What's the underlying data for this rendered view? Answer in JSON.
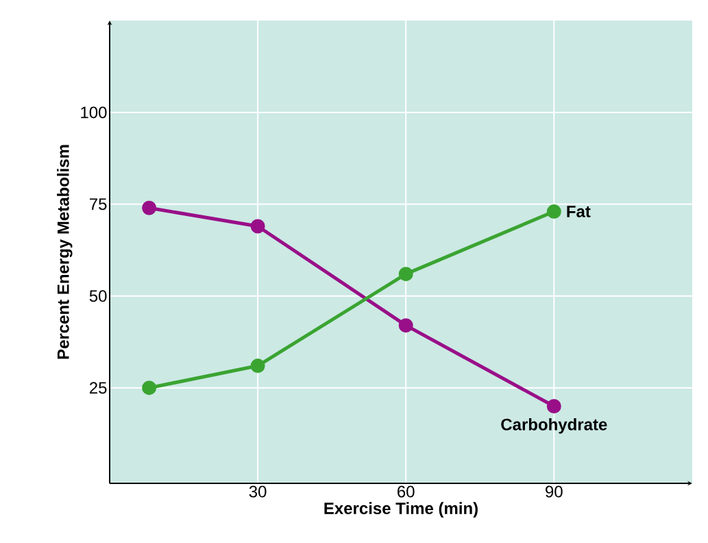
{
  "chart_data": {
    "type": "line",
    "xlabel": "Exercise Time (min)",
    "ylabel": "Percent Energy Metabolism",
    "x": [
      8,
      30,
      60,
      90
    ],
    "series": [
      {
        "name": "Carbohydrate",
        "color": "#990f88",
        "values": [
          74,
          69,
          42,
          20
        ]
      },
      {
        "name": "Fat",
        "color": "#3aa431",
        "values": [
          25,
          31,
          56,
          73
        ]
      }
    ],
    "xlim": [
      0,
      118
    ],
    "ylim": [
      -1,
      125
    ],
    "xticks": [
      30,
      60,
      90
    ],
    "yticks": [
      25,
      50,
      75,
      100
    ],
    "grid": true,
    "marker": "circle",
    "line_style": "solid"
  }
}
